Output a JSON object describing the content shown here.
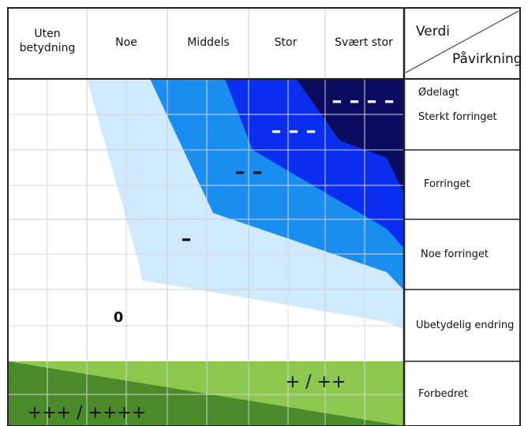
{
  "matrix": {
    "header_cells": [
      [
        "Uten",
        "betydning"
      ],
      [
        "Noe"
      ],
      [
        "Middels"
      ],
      [
        "Stor"
      ],
      [
        "Svært stor"
      ]
    ],
    "corner": {
      "top_label": "Verdi",
      "bottom_label": "Påvirkning"
    },
    "row_labels": [
      "Ødelagt",
      "Sterkt forringet",
      "Forringet",
      "Noe forringet",
      "Ubetydelig endring",
      "Forbedret"
    ],
    "zone_labels": {
      "very_large_negative": "– – – –",
      "large_negative": "– – –",
      "medium_negative": "– –",
      "small_negative": "–",
      "neutral": "0",
      "positive": "+ / ++",
      "very_positive": "+++ / ++++"
    },
    "colors": {
      "very_large_negative": "#0a0a5e",
      "large_negative": "#0a2ef0",
      "medium_negative": "#1a8df0",
      "small_negative": "#cfe9fd",
      "positive_light": "#8cc84e",
      "positive_dark": "#4a8a2a",
      "grid_line": "#d8d8d8",
      "border": "#222222"
    }
  }
}
